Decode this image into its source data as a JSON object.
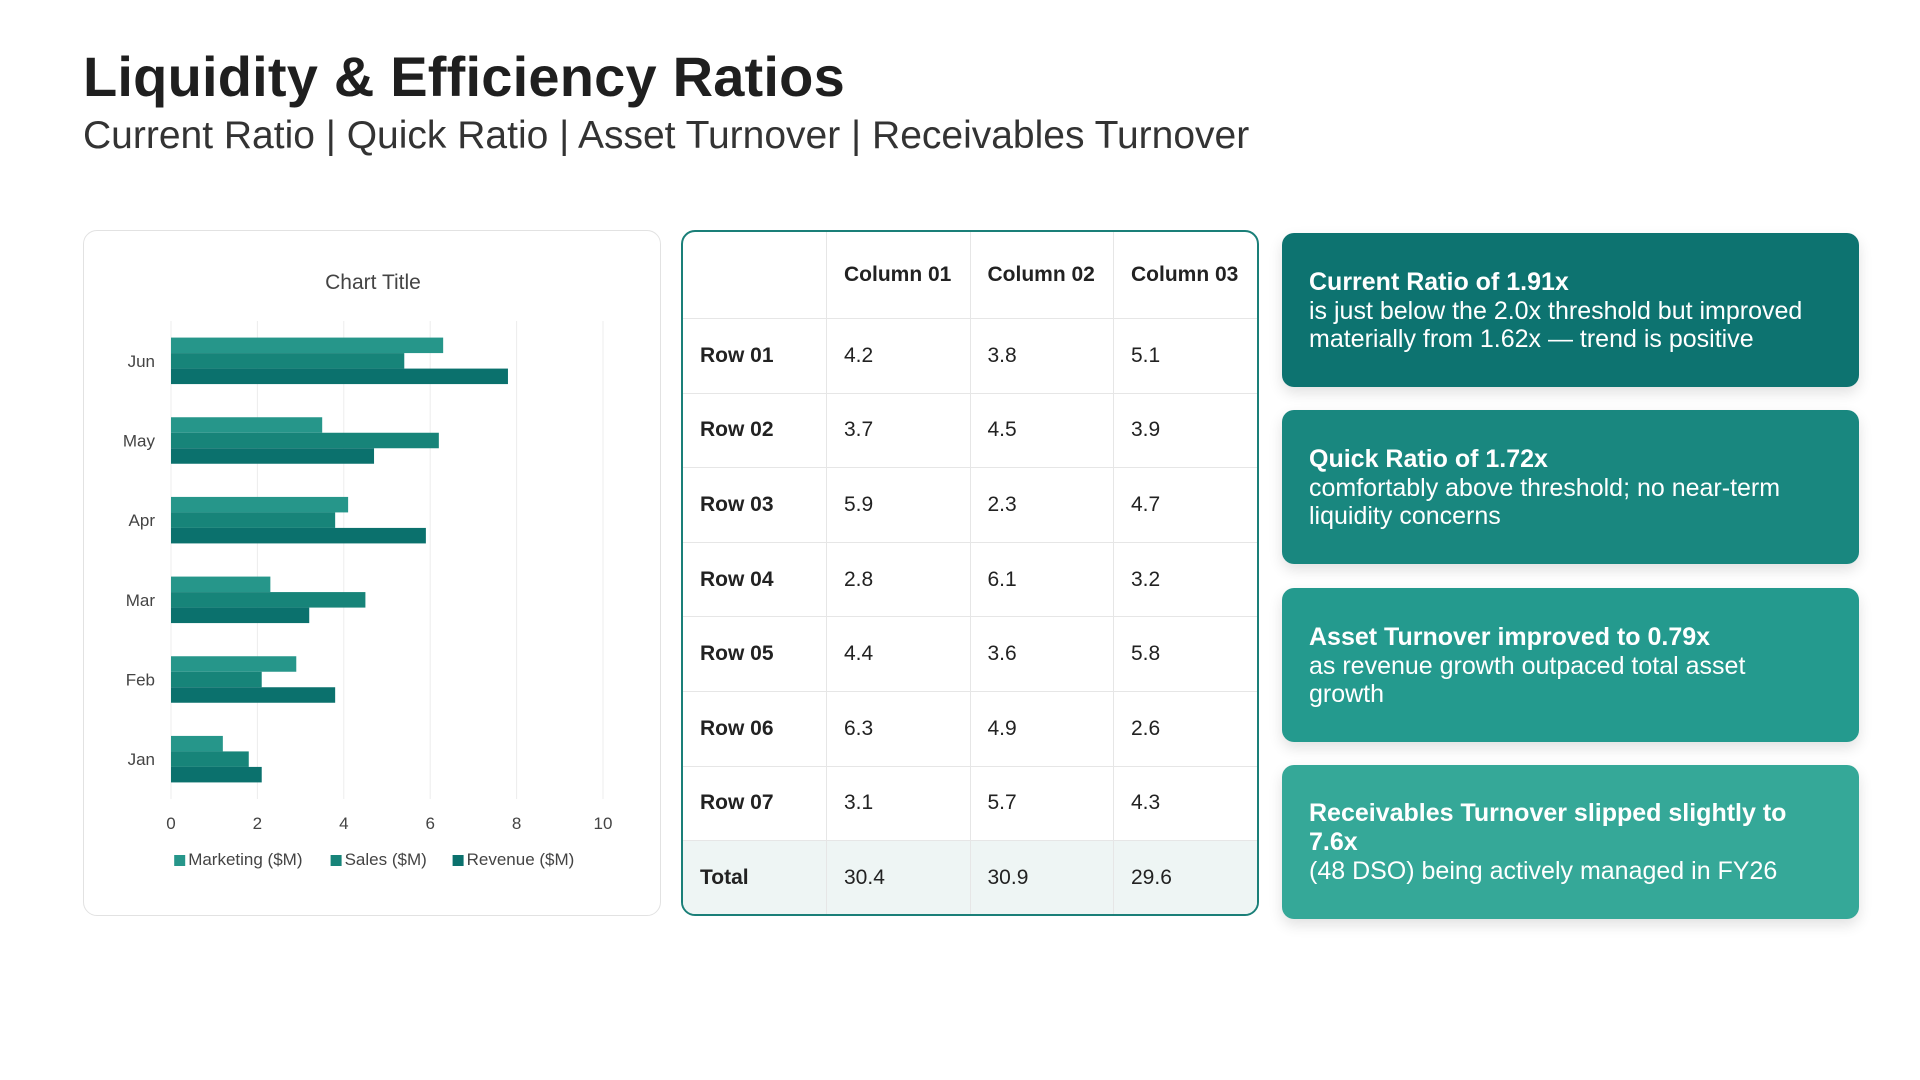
{
  "header": {
    "title": "Liquidity & Efficiency Ratios",
    "subtitle": "Current Ratio | Quick Ratio | Asset Turnover | Receivables Turnover"
  },
  "chart_data": {
    "type": "bar",
    "orientation": "horizontal",
    "title": "Chart Title",
    "categories": [
      "Jan",
      "Feb",
      "Mar",
      "Apr",
      "May",
      "Jun"
    ],
    "series": [
      {
        "name": "Marketing ($M)",
        "values": [
          1.2,
          2.9,
          2.3,
          4.1,
          3.5,
          6.3
        ],
        "color": "#26968a"
      },
      {
        "name": "Sales ($M)",
        "values": [
          1.8,
          2.1,
          4.5,
          3.8,
          6.2,
          5.4
        ],
        "color": "#178479"
      },
      {
        "name": "Revenue ($M)",
        "values": [
          2.1,
          3.8,
          3.2,
          5.9,
          4.7,
          7.8
        ],
        "color": "#0b716d"
      }
    ],
    "xlim": [
      0,
      10
    ],
    "xticks": [
      0,
      2,
      4,
      6,
      8,
      10
    ],
    "grid": true,
    "legend": "bottom"
  },
  "table": {
    "columns": [
      "",
      "Column 01",
      "Column 02",
      "Column 03"
    ],
    "rows": [
      [
        "Row 01",
        "4.2",
        "3.8",
        "5.1"
      ],
      [
        "Row 02",
        "3.7",
        "4.5",
        "3.9"
      ],
      [
        "Row 03",
        "5.9",
        "2.3",
        "4.7"
      ],
      [
        "Row 04",
        "2.8",
        "6.1",
        "3.2"
      ],
      [
        "Row 05",
        "4.4",
        "3.6",
        "5.8"
      ],
      [
        "Row 06",
        "6.3",
        "4.9",
        "2.6"
      ],
      [
        "Row 07",
        "3.1",
        "5.7",
        "4.3"
      ]
    ],
    "total": [
      "Total",
      "30.4",
      "30.9",
      "29.6"
    ]
  },
  "callouts": [
    {
      "head": "Current Ratio of 1.91x",
      "body": "is just below the 2.0x threshold but improved materially from 1.62x — trend is positive"
    },
    {
      "head": "Quick Ratio of 1.72x",
      "body": "comfortably above threshold; no near-term liquidity concerns"
    },
    {
      "head": "Asset Turnover improved to 0.79x",
      "body": "as revenue growth outpaced total asset growth"
    },
    {
      "head": "Receivables Turnover slipped slightly to 7.6x",
      "body": "(48 DSO) being actively managed in FY26"
    }
  ]
}
